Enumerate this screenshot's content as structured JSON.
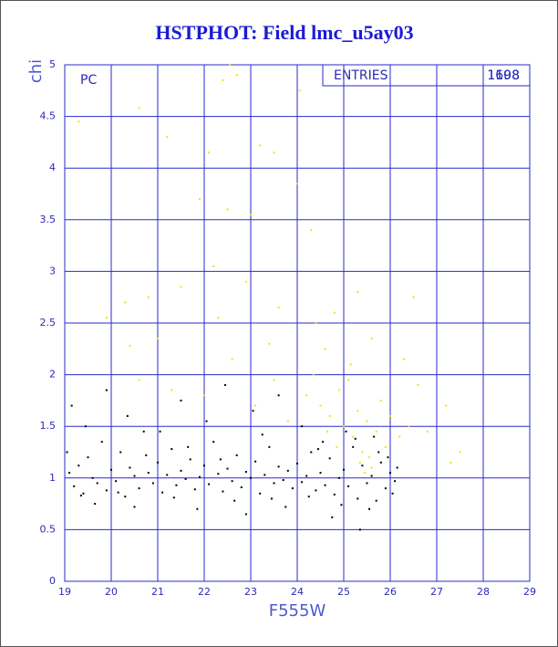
{
  "chart_data": {
    "type": "scatter",
    "title": "HSTPHOT: Field lmc_u5ay03",
    "xlabel": "F555W",
    "ylabel": "chi",
    "annotation": "PC",
    "stats": {
      "label": "ENTRIES",
      "values": [
        1198,
        1608
      ]
    },
    "xlim": [
      19,
      29
    ],
    "ylim": [
      0,
      5
    ],
    "xticks": [
      19,
      20,
      21,
      22,
      23,
      24,
      25,
      26,
      27,
      28,
      29
    ],
    "yticks": [
      0,
      0.5,
      1,
      1.5,
      2,
      2.5,
      3,
      3.5,
      4,
      4.5,
      5
    ],
    "grid": true,
    "grid_color": "#2a2ad0",
    "series": [
      {
        "color": "#000000",
        "x": [
          19.1,
          19.2,
          19.3,
          19.4,
          19.5,
          19.6,
          19.7,
          19.8,
          19.9,
          20.0,
          20.1,
          20.2,
          20.3,
          20.4,
          20.5,
          20.6,
          20.7,
          20.8,
          20.9,
          21.0,
          21.1,
          21.2,
          21.3,
          21.4,
          21.5,
          21.6,
          21.7,
          21.8,
          21.9,
          22.0,
          22.1,
          22.2,
          22.3,
          22.4,
          22.5,
          22.6,
          22.7,
          22.8,
          22.9,
          23.0,
          23.1,
          23.2,
          23.3,
          23.4,
          23.5,
          23.6,
          23.7,
          23.8,
          23.9,
          24.0,
          24.1,
          24.2,
          24.3,
          24.4,
          24.5,
          24.6,
          24.7,
          24.8,
          24.9,
          25.0,
          25.1,
          25.2,
          25.3,
          25.4,
          25.5,
          25.6,
          25.7,
          25.8,
          25.9,
          26.0,
          26.1,
          19.15,
          19.45,
          19.9,
          20.35,
          21.05,
          21.5,
          22.05,
          22.45,
          23.05,
          23.6,
          24.1,
          24.55,
          25.05,
          25.35,
          24.75,
          22.9,
          20.5,
          19.65,
          21.85,
          23.75,
          25.55,
          26.05,
          25.75,
          25.25,
          24.95,
          24.25,
          23.45,
          22.65,
          21.35,
          20.15,
          19.35,
          19.05,
          20.75,
          21.65,
          22.35,
          23.25,
          24.45,
          25.65,
          25.95,
          26.15
        ],
        "values": [
          1.05,
          0.92,
          1.12,
          0.85,
          1.2,
          1.0,
          0.95,
          1.35,
          0.88,
          1.08,
          0.97,
          1.25,
          0.82,
          1.1,
          1.02,
          0.9,
          1.45,
          1.05,
          0.95,
          1.15,
          0.86,
          1.03,
          1.28,
          0.93,
          1.07,
          0.99,
          1.18,
          0.89,
          1.01,
          1.12,
          0.94,
          1.35,
          1.04,
          0.87,
          1.09,
          0.97,
          1.22,
          0.91,
          1.06,
          1.0,
          1.16,
          0.85,
          1.03,
          1.3,
          0.95,
          1.11,
          0.98,
          1.07,
          0.9,
          1.14,
          0.96,
          1.02,
          1.25,
          0.88,
          1.05,
          0.93,
          1.19,
          0.84,
          1.0,
          1.08,
          0.92,
          1.3,
          0.8,
          1.12,
          0.95,
          1.02,
          0.78,
          1.15,
          0.9,
          1.05,
          0.97,
          1.7,
          1.5,
          1.85,
          1.6,
          1.45,
          1.75,
          1.55,
          1.9,
          1.65,
          1.8,
          1.5,
          1.35,
          1.45,
          0.5,
          0.62,
          0.65,
          0.72,
          0.75,
          0.7,
          0.72,
          0.7,
          0.85,
          1.25,
          1.38,
          0.74,
          0.82,
          0.8,
          0.78,
          0.81,
          0.86,
          0.83,
          1.25,
          1.22,
          1.3,
          1.18,
          1.42,
          1.28,
          1.4,
          1.2,
          1.1
        ]
      },
      {
        "color": "#e8e800",
        "x": [
          19.3,
          20.6,
          21.2,
          22.1,
          22.4,
          22.55,
          22.7,
          23.2,
          23.5,
          24.0,
          21.9,
          22.5,
          23.0,
          24.3,
          20.3,
          20.8,
          21.5,
          22.2,
          22.9,
          23.6,
          24.4,
          24.8,
          25.3,
          26.5,
          19.9,
          21.0,
          22.3,
          23.4,
          24.6,
          25.6,
          20.4,
          22.6,
          23.5,
          24.2,
          24.5,
          24.7,
          24.9,
          25.0,
          25.1,
          25.2,
          25.3,
          25.4,
          25.5,
          25.6,
          25.7,
          25.8,
          25.9,
          26.0,
          26.2,
          26.4,
          26.8,
          27.2,
          27.5,
          27.3,
          26.6,
          25.45,
          25.35,
          25.55,
          24.85,
          24.65,
          23.8,
          23.1,
          22.0,
          21.3,
          20.6,
          24.35,
          25.15,
          26.3,
          24.05
        ],
        "values": [
          4.45,
          4.58,
          4.3,
          4.15,
          4.85,
          5.0,
          4.9,
          4.22,
          4.15,
          3.85,
          3.7,
          3.6,
          3.55,
          3.4,
          2.7,
          2.75,
          2.85,
          3.05,
          2.9,
          2.65,
          2.5,
          2.6,
          2.8,
          2.75,
          2.55,
          2.35,
          2.55,
          2.3,
          2.25,
          2.35,
          2.28,
          2.15,
          1.95,
          1.8,
          1.7,
          1.6,
          1.85,
          1.5,
          1.95,
          1.4,
          1.65,
          1.25,
          1.55,
          1.1,
          1.45,
          1.75,
          1.3,
          1.6,
          1.4,
          1.5,
          1.45,
          1.7,
          1.25,
          1.15,
          1.9,
          1.05,
          1.15,
          1.2,
          1.3,
          1.45,
          1.55,
          1.7,
          1.8,
          1.85,
          1.95,
          2.0,
          2.1,
          2.15,
          4.75
        ]
      }
    ]
  }
}
